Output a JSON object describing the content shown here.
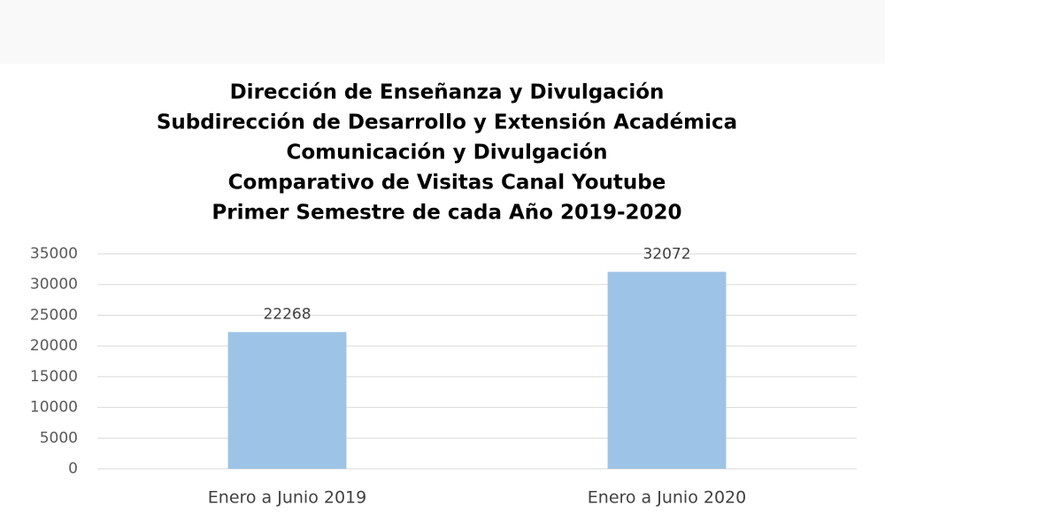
{
  "chart_data": {
    "type": "bar",
    "title": [
      "Dirección de Enseñanza y Divulgación",
      "Subdirección de Desarrollo y Extensión Académica",
      "Comunicación y Divulgación",
      "Comparativo de Visitas Canal Youtube",
      "Primer Semestre de cada Año 2019-2020"
    ],
    "categories": [
      "Enero a Junio 2019",
      "Enero a Junio 2020"
    ],
    "values": [
      22268,
      32072
    ],
    "color": "#9dc3e6",
    "ylim": [
      0,
      35000
    ],
    "yticks": [
      0,
      5000,
      10000,
      15000,
      20000,
      25000,
      30000,
      35000
    ],
    "grid": true
  }
}
